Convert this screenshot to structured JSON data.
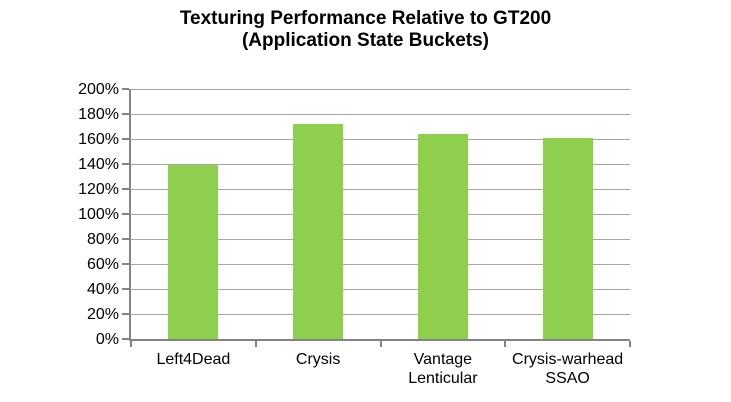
{
  "chart_data": {
    "type": "bar",
    "title": "Texturing Performance Relative to GT200",
    "subtitle": "(Application State Buckets)",
    "categories": [
      "Left4Dead",
      "Crysis",
      "Vantage\nLenticular",
      "Crysis-warhead\nSSAO"
    ],
    "values": [
      139,
      172,
      164,
      161
    ],
    "value_unit": "%",
    "xlabel": "",
    "ylabel": "",
    "ylim": [
      0,
      200
    ],
    "y_tick_step": 20,
    "y_tick_labels": [
      "200%",
      "180%",
      "160%",
      "140%",
      "120%",
      "100%",
      "80%",
      "60%",
      "40%",
      "20%",
      "0%"
    ],
    "grid": "horizontal",
    "legend": "none",
    "colors": {
      "bar": "#8ed04e",
      "gridline": "#a6a6a6",
      "axis": "#848484",
      "text": "#000000",
      "background": "#ffffff"
    }
  }
}
